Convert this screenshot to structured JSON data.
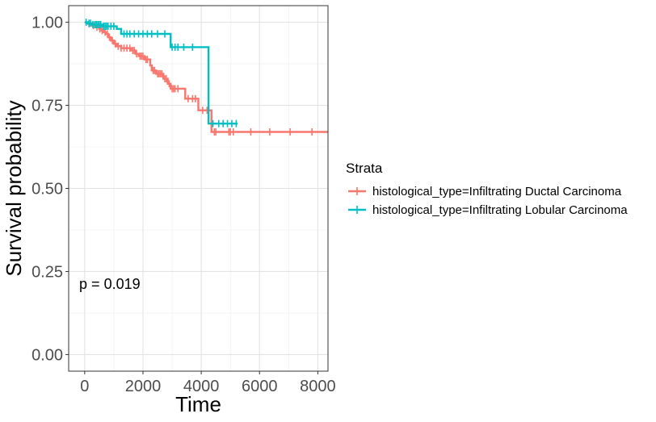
{
  "chart_data": {
    "type": "line",
    "subtype": "kaplan-meier",
    "xlabel": "Time",
    "ylabel": "Survival probability",
    "xlim": [
      -550,
      8350
    ],
    "ylim": [
      -0.05,
      1.05
    ],
    "x_ticks": [
      0,
      2000,
      4000,
      6000,
      8000
    ],
    "x_tick_labels": [
      "0",
      "2000",
      "4000",
      "6000",
      "8000"
    ],
    "y_ticks": [
      0.0,
      0.25,
      0.5,
      0.75,
      1.0
    ],
    "y_tick_labels": [
      "0.00",
      "0.25",
      "0.50",
      "0.75",
      "1.00"
    ],
    "grid": true,
    "annotation": {
      "text": "p = 0.019",
      "x": 200,
      "y": 0.2
    },
    "legend": {
      "title": "Strata",
      "position": "right"
    },
    "series": [
      {
        "name": "histological_type=Infiltrating Ductal Carcinoma",
        "color": "#F8766D",
        "steps": [
          [
            0,
            1.0
          ],
          [
            120,
            0.995
          ],
          [
            250,
            0.99
          ],
          [
            380,
            0.985
          ],
          [
            500,
            0.98
          ],
          [
            580,
            0.975
          ],
          [
            650,
            0.97
          ],
          [
            720,
            0.965
          ],
          [
            800,
            0.955
          ],
          [
            900,
            0.945
          ],
          [
            1000,
            0.935
          ],
          [
            1100,
            0.928
          ],
          [
            1250,
            0.922
          ],
          [
            1600,
            0.915
          ],
          [
            1750,
            0.905
          ],
          [
            1850,
            0.898
          ],
          [
            2050,
            0.888
          ],
          [
            2250,
            0.87
          ],
          [
            2300,
            0.855
          ],
          [
            2450,
            0.845
          ],
          [
            2700,
            0.83
          ],
          [
            2850,
            0.815
          ],
          [
            2950,
            0.8
          ],
          [
            3450,
            0.77
          ],
          [
            3900,
            0.735
          ],
          [
            4350,
            0.67
          ],
          [
            8350,
            0.67
          ]
        ],
        "censor_times": [
          150,
          300,
          420,
          520,
          600,
          700,
          780,
          850,
          950,
          1050,
          1150,
          1250,
          1350,
          1450,
          1550,
          1650,
          1700,
          1780,
          1900,
          1950,
          2000,
          2100,
          2150,
          2350,
          2400,
          2500,
          2550,
          2600,
          2650,
          2750,
          2800,
          2900,
          3000,
          3050,
          3100,
          3200,
          3550,
          3700,
          3800,
          4050,
          4200,
          4450,
          4500,
          4950,
          5000,
          5100,
          5700,
          6350,
          7050,
          7800
        ]
      },
      {
        "name": "histological_type=Infiltrating Lobular Carcinoma",
        "color": "#00BFC4",
        "steps": [
          [
            0,
            1.0
          ],
          [
            100,
            0.997
          ],
          [
            250,
            0.993
          ],
          [
            600,
            0.988
          ],
          [
            1100,
            0.98
          ],
          [
            1250,
            0.965
          ],
          [
            2950,
            0.925
          ],
          [
            4250,
            0.695
          ],
          [
            5250,
            0.695
          ]
        ],
        "censor_times": [
          50,
          150,
          200,
          280,
          350,
          400,
          450,
          500,
          550,
          650,
          700,
          750,
          800,
          900,
          1000,
          1350,
          1450,
          1550,
          1700,
          1850,
          2000,
          2150,
          2300,
          2500,
          2750,
          3000,
          3100,
          3200,
          3400,
          3700,
          4400,
          4600,
          4750,
          4900,
          5050,
          5200
        ]
      }
    ]
  }
}
